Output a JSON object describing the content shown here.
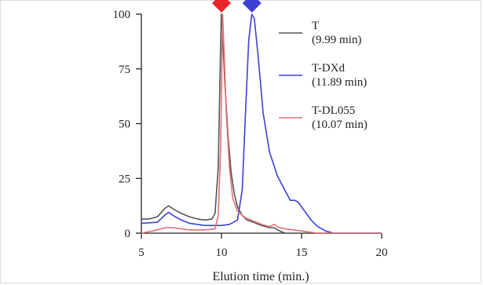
{
  "chart_data": {
    "type": "line",
    "title": "",
    "xlabel": "Elution time (min.)",
    "ylabel": "",
    "xlim": [
      5,
      20
    ],
    "ylim": [
      0,
      100
    ],
    "xticks": [
      5,
      10,
      15,
      20
    ],
    "yticks": [
      0,
      25,
      50,
      75,
      100
    ],
    "grid": false,
    "legend_position": "top-right",
    "markers": [
      {
        "name": "red-marker",
        "x": 10.0,
        "color": "#e8242a"
      },
      {
        "name": "blue-marker",
        "x": 11.9,
        "color": "#3c3fd6"
      }
    ],
    "series": [
      {
        "name": "T",
        "retention": "(9.99 min)",
        "color": "#555555",
        "points": [
          [
            5,
            6.5
          ],
          [
            5.5,
            6.5
          ],
          [
            6,
            7.5
          ],
          [
            6.5,
            11.5
          ],
          [
            6.7,
            12.5
          ],
          [
            7,
            11
          ],
          [
            7.5,
            9
          ],
          [
            8,
            7.5
          ],
          [
            8.5,
            6.5
          ],
          [
            9,
            6
          ],
          [
            9.4,
            6.5
          ],
          [
            9.6,
            9
          ],
          [
            9.8,
            30
          ],
          [
            9.93,
            80
          ],
          [
            9.99,
            100
          ],
          [
            10.05,
            95
          ],
          [
            10.2,
            70
          ],
          [
            10.4,
            45
          ],
          [
            10.6,
            28
          ],
          [
            10.8,
            18
          ],
          [
            11,
            12
          ],
          [
            11.3,
            8
          ],
          [
            11.6,
            6
          ],
          [
            12,
            5
          ],
          [
            12.5,
            3.5
          ],
          [
            13,
            2.5
          ],
          [
            13.3,
            2.5
          ],
          [
            13.5,
            1.5
          ],
          [
            13.8,
            0.5
          ],
          [
            14,
            0
          ],
          [
            20,
            0
          ]
        ]
      },
      {
        "name": "T-DXd",
        "retention": "(11.89 min)",
        "color": "#3c3fd6",
        "points": [
          [
            5,
            4.5
          ],
          [
            6,
            5
          ],
          [
            6.5,
            8.5
          ],
          [
            6.7,
            9.5
          ],
          [
            7,
            8
          ],
          [
            7.5,
            6
          ],
          [
            8,
            4.5
          ],
          [
            9,
            3.5
          ],
          [
            10,
            3.5
          ],
          [
            10.5,
            4
          ],
          [
            11,
            6
          ],
          [
            11.3,
            20
          ],
          [
            11.5,
            55
          ],
          [
            11.7,
            88
          ],
          [
            11.89,
            100
          ],
          [
            12.05,
            98
          ],
          [
            12.3,
            80
          ],
          [
            12.6,
            55
          ],
          [
            13,
            37
          ],
          [
            13.5,
            26
          ],
          [
            14,
            19
          ],
          [
            14.3,
            15
          ],
          [
            14.6,
            15
          ],
          [
            14.8,
            14
          ],
          [
            15.2,
            10
          ],
          [
            15.6,
            6
          ],
          [
            16,
            3
          ],
          [
            16.5,
            1
          ],
          [
            17,
            0
          ],
          [
            20,
            0
          ]
        ]
      },
      {
        "name": "T-DL055",
        "retention": "(10.07 min)",
        "color": "#e07070",
        "points": [
          [
            5,
            0
          ],
          [
            6,
            1.5
          ],
          [
            6.5,
            2.5
          ],
          [
            7,
            2.5
          ],
          [
            7.5,
            2
          ],
          [
            8,
            1.5
          ],
          [
            9,
            1.5
          ],
          [
            9.6,
            2
          ],
          [
            9.8,
            8
          ],
          [
            9.95,
            40
          ],
          [
            10.07,
            100
          ],
          [
            10.15,
            85
          ],
          [
            10.3,
            55
          ],
          [
            10.5,
            30
          ],
          [
            10.7,
            16
          ],
          [
            11,
            10
          ],
          [
            11.5,
            7
          ],
          [
            12,
            5.5
          ],
          [
            12.5,
            4
          ],
          [
            13,
            3
          ],
          [
            13.3,
            4
          ],
          [
            13.6,
            2.5
          ],
          [
            14,
            2
          ],
          [
            14.5,
            1.5
          ],
          [
            15,
            1
          ],
          [
            15.5,
            0.5
          ],
          [
            16,
            0
          ],
          [
            20,
            0
          ]
        ]
      }
    ]
  }
}
